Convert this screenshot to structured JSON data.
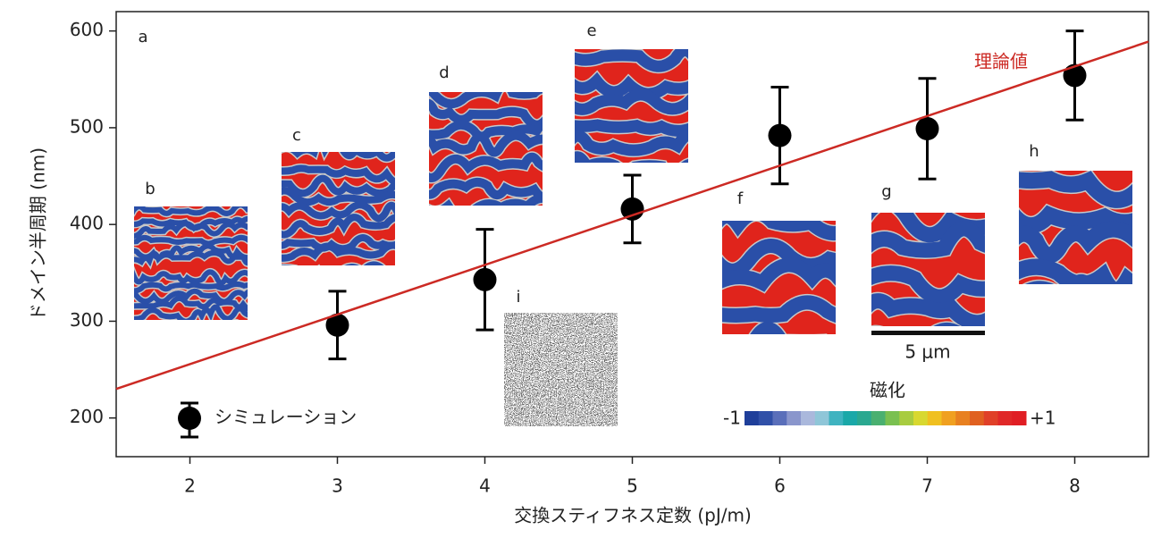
{
  "chart_data": {
    "type": "scatter",
    "x_label": "交換スティフネス定数 (pJ/m)",
    "y_label": "ドメイン半周期 (nm)",
    "xlim": [
      1.5,
      8.5
    ],
    "ylim": [
      160,
      620
    ],
    "xticks": [
      2,
      3,
      4,
      5,
      6,
      7,
      8
    ],
    "yticks": [
      200,
      300,
      400,
      500,
      600
    ],
    "legend": "lower left",
    "series": [
      {
        "name": "シミュレーション",
        "type": "errorbar",
        "color": "#000000",
        "x": [
          3,
          4,
          5,
          6,
          7,
          8
        ],
        "values": [
          296,
          343,
          416,
          492,
          499,
          554
        ],
        "errors": [
          35,
          52,
          35,
          50,
          52,
          46
        ]
      },
      {
        "name": "理論値",
        "type": "line",
        "color": "#cc2a24",
        "x": [
          1.5,
          8.5
        ],
        "values": [
          230,
          589
        ]
      }
    ],
    "panel_labels": [
      "a",
      "b",
      "c",
      "d",
      "e",
      "f",
      "g",
      "h",
      "i"
    ],
    "scale_bar": "5 μm",
    "colorbar": {
      "label": "磁化",
      "ticks": [
        {
          "value": -1,
          "label": "-1"
        },
        {
          "value": 1,
          "label": "+1"
        }
      ],
      "colors": [
        "#1f3f9a",
        "#3050a8",
        "#5a6fba",
        "#8a96cc",
        "#aab8dc",
        "#8fc6d8",
        "#3fb3c0",
        "#1aa8a8",
        "#2aa890",
        "#4ab070",
        "#7ac050",
        "#a8cc40",
        "#d8d830",
        "#f0c020",
        "#f0a020",
        "#e88020",
        "#e06020",
        "#e04028",
        "#e02828",
        "#e01e24"
      ]
    }
  }
}
